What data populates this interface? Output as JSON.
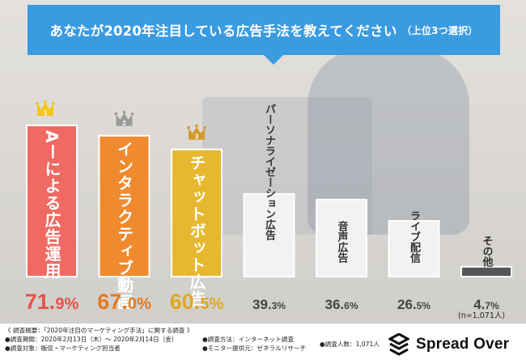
{
  "header": {
    "title": "あなたが2020年注目している広告手法を教えてください",
    "subtitle": "（上位3つ選択）"
  },
  "chart_data": {
    "type": "bar",
    "title": "あなたが2020年注目している広告手法を教えてください（上位3つ選択）",
    "categories": [
      "AIによる広告運用",
      "インタラクティブ動画",
      "チャットボット広告",
      "パーソナライゼーション広告",
      "音声広告",
      "ライブ配信",
      "その他"
    ],
    "display_labels": [
      "Aーによる広告運用",
      "インタラクティブ動画",
      "チャットボット広告",
      "パーソナライゼーション広告",
      "音声広告",
      "ライブ配信",
      "その他"
    ],
    "values": [
      71.9,
      67.0,
      60.5,
      39.3,
      36.6,
      26.5,
      4.7
    ],
    "value_labels": [
      {
        "int": "71.",
        "dec": "9",
        "unit": "%"
      },
      {
        "int": "67.",
        "dec": "0",
        "unit": "%"
      },
      {
        "int": "60.",
        "dec": "5",
        "unit": "%"
      },
      {
        "int": "39.",
        "dec": "3",
        "unit": "%"
      },
      {
        "int": "36.",
        "dec": "6",
        "unit": "%"
      },
      {
        "int": "26.",
        "dec": "5",
        "unit": "%"
      },
      {
        "int": "4.",
        "dec": "7",
        "unit": "%"
      }
    ],
    "ranks": [
      "1",
      "2",
      "3"
    ],
    "colors": [
      "#ef6a62",
      "#f08a2e",
      "#e8b730",
      "#f2f2f2",
      "#f2f2f2",
      "#f2f2f2",
      "#555555"
    ],
    "border_colors": [
      "#ffffff",
      "#ffffff",
      "#ffffff",
      "#ffffff",
      "#ffffff",
      "#ffffff",
      "#ffffff"
    ],
    "label_colors": [
      "#ffffff",
      "#ffffff",
      "#ffffff",
      "#333333",
      "#333333",
      "#333333",
      "#333333"
    ],
    "value_colors": [
      "#e8514a",
      "#e57a1e",
      "#dfa81e",
      "#444444",
      "#444444",
      "#444444",
      "#444444"
    ],
    "crown_colors": [
      "#f5c518",
      "#9a9a9a",
      "#d69a2a"
    ],
    "ylim": [
      0,
      100
    ],
    "grid": false,
    "legend": "none",
    "note": "(n=1,071人)"
  },
  "footer": {
    "col1": [
      "《 調査概要：「2020年注目のマーケティング手法」に関する調査 》",
      "●調査期間：2020年2月13日（木）〜 2020年2月14日（金）",
      "●調査対象：販促・マーケティング担当者"
    ],
    "col2": [
      "●調査方法：インターネット調査",
      "●モニター提供元：ゼネラルリサーチ"
    ],
    "col3": [
      "●調査人数：1,071人"
    ],
    "logo_text": "Spread Over"
  }
}
